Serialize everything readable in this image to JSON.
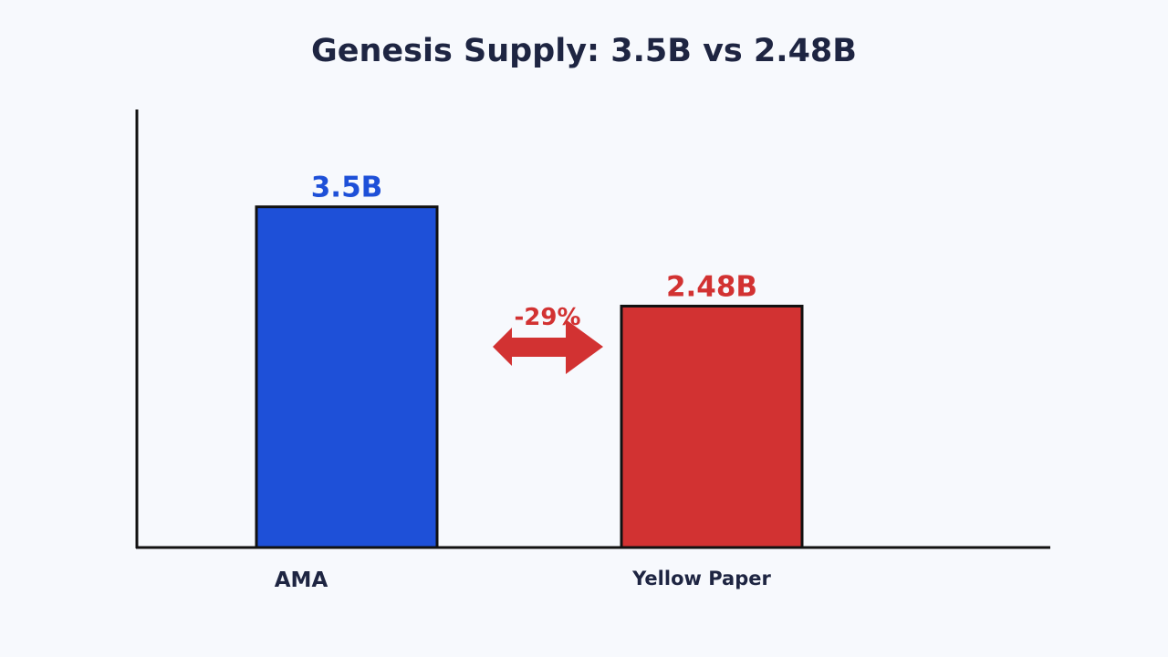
{
  "chart_data": {
    "type": "bar",
    "title": "Genesis Supply: 3.5B vs 2.48B",
    "categories": [
      "AMA",
      "Yellow Paper"
    ],
    "values": [
      3.5,
      2.48
    ],
    "data_labels": [
      "3.5B",
      "2.48B"
    ],
    "colors": [
      "#1e50d8",
      "#d23232"
    ],
    "label_colors": [
      "#1e50d8",
      "#d23232"
    ],
    "ylim": [
      0,
      4.5
    ],
    "grid": false,
    "legend": "none",
    "annotation": {
      "text": "-29%",
      "color": "#d23232",
      "shape": "double-arrow"
    }
  }
}
